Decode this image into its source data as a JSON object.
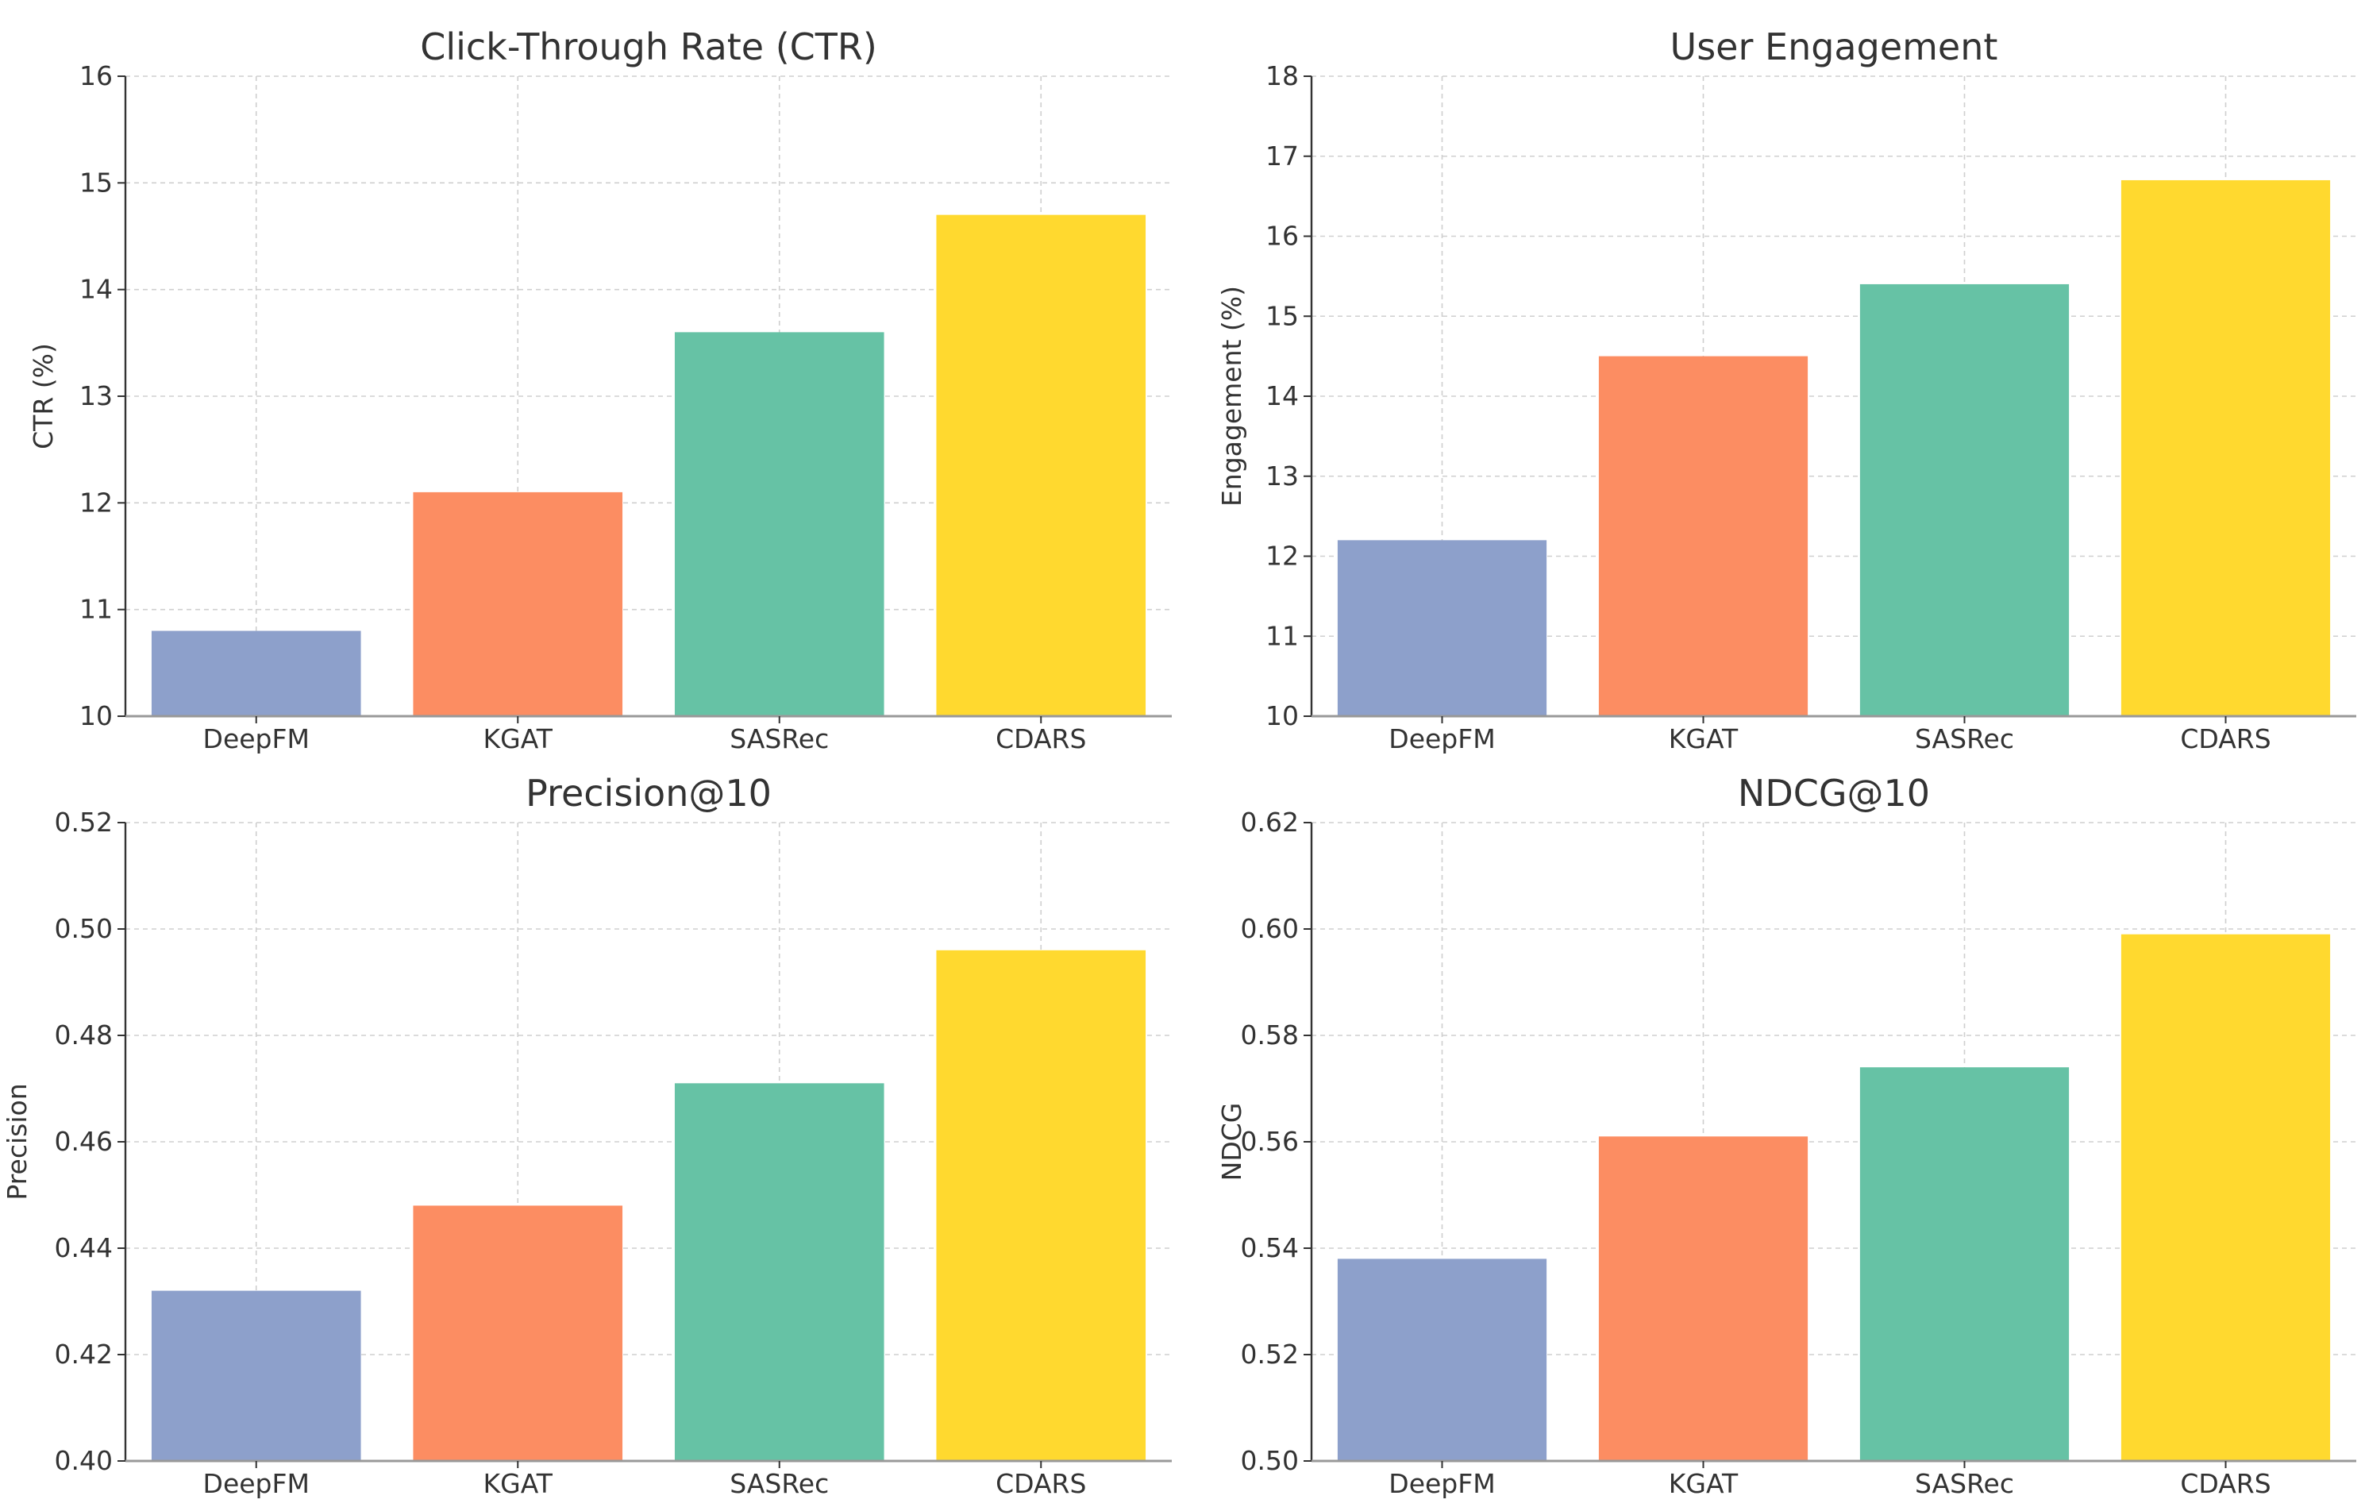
{
  "colors": {
    "DeepFM": "#8da0cb",
    "KGAT": "#fc8d62",
    "SASRec": "#66c2a5",
    "CDARS": "#ffd92f"
  },
  "chart_data": [
    {
      "type": "bar",
      "title": "Click-Through Rate (CTR)",
      "xlabel": "",
      "ylabel": "CTR (%)",
      "categories": [
        "DeepFM",
        "KGAT",
        "SASRec",
        "CDARS"
      ],
      "values": [
        10.8,
        12.1,
        13.6,
        14.7
      ],
      "ylim": [
        10,
        16
      ],
      "yticks": [
        "10",
        "11",
        "12",
        "13",
        "14",
        "15",
        "16"
      ],
      "grid": true
    },
    {
      "type": "bar",
      "title": "User Engagement",
      "xlabel": "",
      "ylabel": "Engagement (%)",
      "categories": [
        "DeepFM",
        "KGAT",
        "SASRec",
        "CDARS"
      ],
      "values": [
        12.2,
        14.5,
        15.4,
        16.7
      ],
      "ylim": [
        10,
        18
      ],
      "yticks": [
        "10",
        "11",
        "12",
        "13",
        "14",
        "15",
        "16",
        "17",
        "18"
      ],
      "grid": true
    },
    {
      "type": "bar",
      "title": "Precision@10",
      "xlabel": "",
      "ylabel": "Precision",
      "categories": [
        "DeepFM",
        "KGAT",
        "SASRec",
        "CDARS"
      ],
      "values": [
        0.432,
        0.448,
        0.471,
        0.496
      ],
      "ylim": [
        0.4,
        0.52
      ],
      "yticks": [
        "0.40",
        "0.42",
        "0.44",
        "0.46",
        "0.48",
        "0.50",
        "0.52"
      ],
      "grid": true
    },
    {
      "type": "bar",
      "title": "NDCG@10",
      "xlabel": "",
      "ylabel": "NDCG",
      "categories": [
        "DeepFM",
        "KGAT",
        "SASRec",
        "CDARS"
      ],
      "values": [
        0.538,
        0.561,
        0.574,
        0.599
      ],
      "ylim": [
        0.5,
        0.62
      ],
      "yticks": [
        "0.50",
        "0.52",
        "0.54",
        "0.56",
        "0.58",
        "0.60",
        "0.62"
      ],
      "grid": true
    }
  ]
}
